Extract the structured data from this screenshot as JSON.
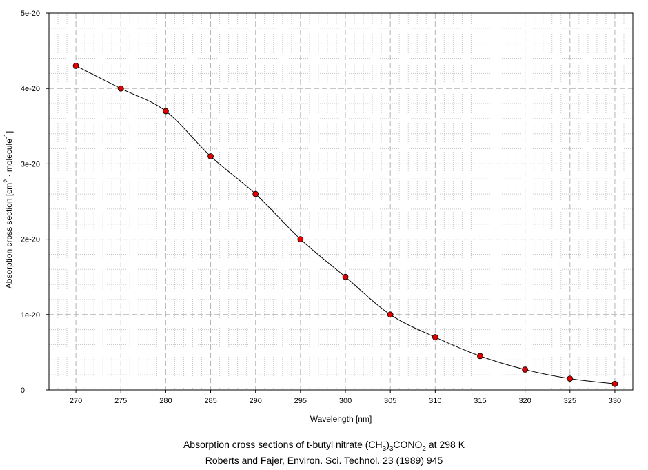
{
  "chart_data": {
    "type": "line",
    "xlabel": "Wavelength [nm]",
    "ylabel_prefix": "Absorption cross section [cm",
    "ylabel_sup1": "2",
    "ylabel_mid": " · molecule",
    "ylabel_sup2": "-1",
    "ylabel_suffix": "]",
    "xlim": [
      267,
      332
    ],
    "ylim": [
      0,
      5e-20
    ],
    "x_ticks": [
      270,
      275,
      280,
      285,
      290,
      295,
      300,
      305,
      310,
      315,
      320,
      325,
      330
    ],
    "x_tick_labels": [
      "270",
      "275",
      "280",
      "285",
      "290",
      "295",
      "300",
      "305",
      "310",
      "315",
      "320",
      "325",
      "330"
    ],
    "y_ticks": [
      0,
      1e-20,
      2e-20,
      3e-20,
      4e-20,
      5e-20
    ],
    "y_tick_labels": [
      "0",
      "1e-20",
      "2e-20",
      "3e-20",
      "4e-20",
      "5e-20"
    ],
    "grid": true,
    "marker_color": "#e00000",
    "line_color": "#000000",
    "series": [
      {
        "x": [
          270,
          275,
          280,
          285,
          290,
          295,
          300,
          305,
          310,
          315,
          320,
          325,
          330
        ],
        "y": [
          4.3e-20,
          4e-20,
          3.7e-20,
          3.1e-20,
          2.6e-20,
          2e-20,
          1.5e-20,
          1e-20,
          7e-21,
          4.5e-21,
          2.7e-21,
          1.5e-21,
          8e-22
        ]
      }
    ]
  },
  "caption": {
    "line1_a": "Absorption cross sections of t-butyl nitrate (CH",
    "line1_sub1": "3",
    "line1_b": ")",
    "line1_sub2": "3",
    "line1_c": "CONO",
    "line1_sub3": "2",
    "line1_d": " at 298 K",
    "line2": "Roberts and Fajer, Environ. Sci. Technol. 23 (1989) 945"
  }
}
